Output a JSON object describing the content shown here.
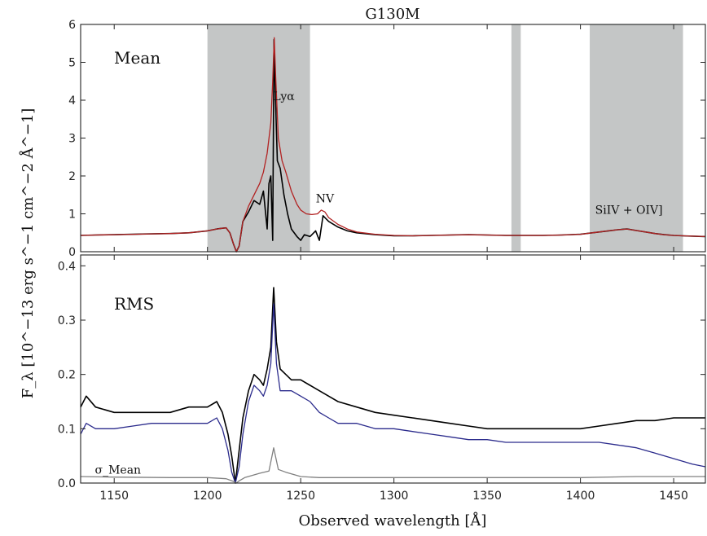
{
  "chart_data": [
    {
      "type": "line",
      "panel": "top",
      "title": "G130M",
      "panel_label": "Mean",
      "xlabel": "",
      "ylabel": "F_λ [10^−13 erg s^−1 cm^−2 Å^−1]",
      "xlim": [
        1132,
        1467
      ],
      "ylim": [
        0,
        6
      ],
      "yticks": [
        0,
        1,
        2,
        3,
        4,
        5,
        6
      ],
      "ytick_labels": [
        "0",
        "1",
        "2",
        "3",
        "4",
        "5",
        "6"
      ],
      "grid": false,
      "shaded_regions": [
        [
          1200,
          1255
        ],
        [
          1363,
          1368
        ],
        [
          1405,
          1455
        ]
      ],
      "annotations": [
        {
          "text": "Lyα",
          "x": 1241,
          "y": 4.0
        },
        {
          "text": "NV",
          "x": 1263,
          "y": 1.3
        },
        {
          "text": "SiIV + OIV]",
          "x": 1426,
          "y": 1.0
        }
      ],
      "series": [
        {
          "color": "#000000",
          "x": [
            1132,
            1140,
            1150,
            1160,
            1170,
            1180,
            1190,
            1200,
            1205,
            1208,
            1210,
            1212,
            1214,
            1215.5,
            1217,
            1219,
            1222,
            1225,
            1228,
            1230,
            1232,
            1233,
            1234,
            1235,
            1235.7,
            1236.5,
            1237.5,
            1239,
            1241,
            1243,
            1245,
            1248,
            1250,
            1252,
            1255,
            1258,
            1260,
            1262,
            1265,
            1270,
            1275,
            1280,
            1290,
            1300,
            1310,
            1320,
            1330,
            1340,
            1350,
            1360,
            1370,
            1380,
            1390,
            1400,
            1405,
            1410,
            1415,
            1420,
            1425,
            1430,
            1435,
            1440,
            1445,
            1450,
            1455,
            1460,
            1467
          ],
          "values": [
            0.43,
            0.44,
            0.45,
            0.46,
            0.47,
            0.48,
            0.5,
            0.55,
            0.6,
            0.62,
            0.63,
            0.5,
            0.2,
            0.0,
            0.15,
            0.8,
            1.05,
            1.35,
            1.25,
            1.6,
            0.6,
            1.8,
            2.0,
            0.3,
            5.6,
            4.0,
            2.4,
            2.2,
            1.5,
            1.0,
            0.6,
            0.4,
            0.3,
            0.45,
            0.4,
            0.55,
            0.3,
            0.95,
            0.8,
            0.65,
            0.55,
            0.5,
            0.45,
            0.42,
            0.42,
            0.43,
            0.44,
            0.45,
            0.44,
            0.43,
            0.43,
            0.43,
            0.44,
            0.46,
            0.49,
            0.52,
            0.55,
            0.58,
            0.6,
            0.56,
            0.52,
            0.48,
            0.45,
            0.43,
            0.42,
            0.41,
            0.4
          ]
        },
        {
          "color": "#b22222",
          "x": [
            1132,
            1140,
            1150,
            1160,
            1170,
            1180,
            1190,
            1200,
            1205,
            1208,
            1210,
            1212,
            1214,
            1215.5,
            1217,
            1219,
            1222,
            1225,
            1228,
            1230,
            1232,
            1234,
            1235,
            1235.8,
            1236.6,
            1238,
            1240,
            1242,
            1245,
            1248,
            1250,
            1253,
            1256,
            1259,
            1261,
            1263,
            1265,
            1270,
            1275,
            1280,
            1290,
            1300,
            1310,
            1320,
            1330,
            1340,
            1350,
            1360,
            1370,
            1380,
            1390,
            1400,
            1405,
            1410,
            1415,
            1420,
            1425,
            1430,
            1435,
            1440,
            1445,
            1450,
            1455,
            1460,
            1467
          ],
          "values": [
            0.43,
            0.44,
            0.45,
            0.46,
            0.47,
            0.48,
            0.5,
            0.55,
            0.6,
            0.62,
            0.63,
            0.5,
            0.2,
            0.0,
            0.15,
            0.8,
            1.2,
            1.5,
            1.8,
            2.1,
            2.6,
            3.4,
            4.5,
            5.65,
            4.6,
            3.0,
            2.4,
            2.1,
            1.6,
            1.25,
            1.1,
            1.0,
            0.98,
            1.0,
            1.1,
            1.05,
            0.9,
            0.72,
            0.6,
            0.52,
            0.46,
            0.43,
            0.42,
            0.43,
            0.44,
            0.45,
            0.44,
            0.43,
            0.43,
            0.43,
            0.44,
            0.46,
            0.49,
            0.52,
            0.55,
            0.58,
            0.6,
            0.56,
            0.52,
            0.48,
            0.45,
            0.43,
            0.42,
            0.41,
            0.4
          ]
        }
      ]
    },
    {
      "type": "line",
      "panel": "bottom",
      "panel_label": "RMS",
      "xlabel": "Observed wavelength [Å]",
      "ylabel": "F_λ [10^−13 erg s^−1 cm^−2 Å^−1]",
      "xlim": [
        1132,
        1467
      ],
      "ylim": [
        0,
        0.42
      ],
      "xticks": [
        1150,
        1200,
        1250,
        1300,
        1350,
        1400,
        1450
      ],
      "xtick_labels": [
        "1150",
        "1200",
        "1250",
        "1300",
        "1350",
        "1400",
        "1450"
      ],
      "yticks": [
        0.0,
        0.1,
        0.2,
        0.3,
        0.4
      ],
      "ytick_labels": [
        "0.0",
        "0.1",
        "0.2",
        "0.3",
        "0.4"
      ],
      "grid": false,
      "annotations": [
        {
          "text": "σ_Mean",
          "x": 1152,
          "y": 0.017
        }
      ],
      "series": [
        {
          "color": "#000000",
          "x": [
            1132,
            1135,
            1140,
            1150,
            1160,
            1170,
            1180,
            1190,
            1200,
            1205,
            1208,
            1211,
            1213,
            1215,
            1217,
            1219,
            1222,
            1225,
            1228,
            1230,
            1232,
            1234,
            1235.5,
            1237,
            1239,
            1242,
            1245,
            1250,
            1255,
            1260,
            1265,
            1270,
            1280,
            1290,
            1300,
            1310,
            1320,
            1330,
            1340,
            1350,
            1360,
            1370,
            1380,
            1390,
            1400,
            1410,
            1420,
            1430,
            1440,
            1450,
            1460,
            1467
          ],
          "values": [
            0.14,
            0.16,
            0.14,
            0.13,
            0.13,
            0.13,
            0.13,
            0.14,
            0.14,
            0.15,
            0.13,
            0.09,
            0.05,
            0.0,
            0.06,
            0.12,
            0.17,
            0.2,
            0.19,
            0.18,
            0.21,
            0.25,
            0.36,
            0.26,
            0.21,
            0.2,
            0.19,
            0.19,
            0.18,
            0.17,
            0.16,
            0.15,
            0.14,
            0.13,
            0.125,
            0.12,
            0.115,
            0.11,
            0.105,
            0.1,
            0.1,
            0.1,
            0.1,
            0.1,
            0.1,
            0.105,
            0.11,
            0.115,
            0.115,
            0.12,
            0.12,
            0.12
          ]
        },
        {
          "color": "#2b2b8c",
          "x": [
            1132,
            1135,
            1140,
            1150,
            1160,
            1170,
            1180,
            1190,
            1200,
            1205,
            1208,
            1211,
            1213,
            1215,
            1217,
            1219,
            1222,
            1225,
            1228,
            1230,
            1232,
            1234,
            1235.5,
            1237,
            1239,
            1242,
            1245,
            1250,
            1255,
            1260,
            1265,
            1270,
            1280,
            1290,
            1300,
            1310,
            1320,
            1330,
            1340,
            1350,
            1360,
            1370,
            1380,
            1390,
            1400,
            1410,
            1420,
            1430,
            1440,
            1450,
            1460,
            1467
          ],
          "values": [
            0.09,
            0.11,
            0.1,
            0.1,
            0.105,
            0.11,
            0.11,
            0.11,
            0.11,
            0.12,
            0.1,
            0.06,
            0.02,
            0.0,
            0.03,
            0.09,
            0.15,
            0.18,
            0.17,
            0.16,
            0.18,
            0.22,
            0.33,
            0.22,
            0.17,
            0.17,
            0.17,
            0.16,
            0.15,
            0.13,
            0.12,
            0.11,
            0.11,
            0.1,
            0.1,
            0.095,
            0.09,
            0.085,
            0.08,
            0.08,
            0.075,
            0.075,
            0.075,
            0.075,
            0.075,
            0.075,
            0.07,
            0.065,
            0.055,
            0.045,
            0.035,
            0.03
          ]
        },
        {
          "color": "#808080",
          "x": [
            1132,
            1150,
            1180,
            1200,
            1210,
            1214,
            1215.5,
            1217,
            1220,
            1228,
            1233,
            1235.5,
            1238,
            1242,
            1250,
            1260,
            1270,
            1300,
            1350,
            1400,
            1430,
            1450,
            1467
          ],
          "values": [
            0.012,
            0.011,
            0.01,
            0.01,
            0.008,
            0.003,
            0.0,
            0.004,
            0.01,
            0.018,
            0.022,
            0.065,
            0.025,
            0.02,
            0.012,
            0.01,
            0.01,
            0.01,
            0.01,
            0.01,
            0.012,
            0.012,
            0.012
          ]
        }
      ]
    }
  ],
  "colors": {
    "shade": "#c4c6c6",
    "mean_data": "#000000",
    "mean_model": "#b22222",
    "rms": "#000000",
    "rms_alt": "#2b2b8c",
    "sigma_mean": "#808080"
  }
}
